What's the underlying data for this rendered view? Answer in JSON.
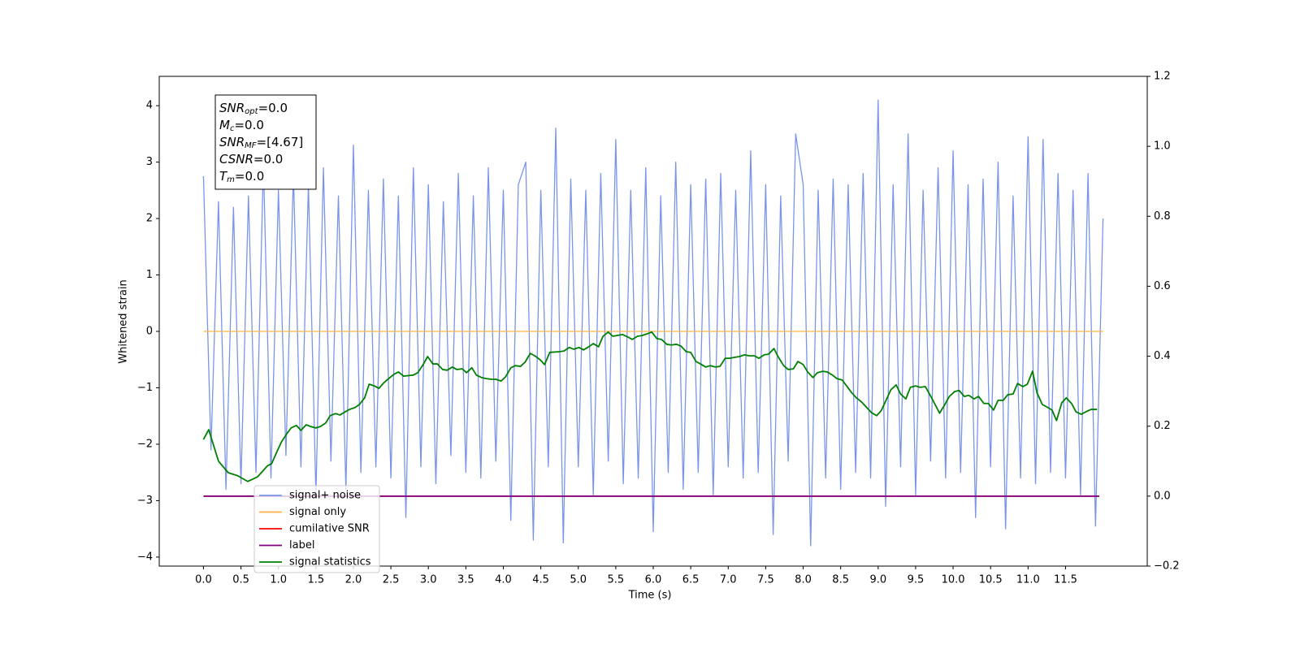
{
  "chart_data": {
    "type": "line",
    "xlabel": "Time (s)",
    "ylabel": "Whitened strain",
    "xlim": [
      -0.59,
      12.59
    ],
    "ylim": [
      -4.16,
      4.52
    ],
    "y2lim": [
      -0.2,
      1.2
    ],
    "xticks": [
      {
        "value": 0,
        "label": "0.0"
      },
      0.5,
      {
        "value": 1,
        "label": "1.0"
      },
      1.5,
      {
        "value": 2,
        "label": "2.0"
      },
      2.5,
      {
        "value": 3,
        "label": "3.0"
      },
      3.5,
      {
        "value": 4,
        "label": "4.0"
      },
      4.5,
      {
        "value": 5,
        "label": "5.0"
      },
      5.5,
      {
        "value": 6,
        "label": "6.0"
      },
      6.5,
      {
        "value": 7,
        "label": "7.0"
      },
      7.5,
      {
        "value": 8,
        "label": "8.0"
      },
      8.5,
      {
        "value": 9,
        "label": "9.0"
      },
      9.5,
      {
        "value": 10,
        "label": "10.0"
      },
      10.5,
      {
        "value": 11,
        "label": "11.0"
      },
      11.5
    ],
    "yticks": [
      {
        "value": -4,
        "label": "−4"
      },
      {
        "value": -3,
        "label": "−3"
      },
      {
        "value": -2,
        "label": "−2"
      },
      {
        "value": -1,
        "label": "−1"
      },
      0,
      1,
      2,
      3,
      4
    ],
    "y2ticks": [
      {
        "value": -0.2,
        "label": "−0.2"
      },
      {
        "value": 0,
        "label": "0.0"
      },
      0.2,
      0.4,
      0.6,
      0.8,
      {
        "value": 1,
        "label": "1.0"
      },
      1.2
    ],
    "legend_loc": "lower left",
    "annotation": [
      {
        "symbol": "SNR",
        "sub": "opt",
        "text": "=0.0"
      },
      {
        "symbol": "M",
        "sub": "c",
        "text": "=0.0"
      },
      {
        "symbol": "SNR",
        "sub": "MF",
        "text": "=[4.67]"
      },
      {
        "symbol": "CSNR",
        "sub": null,
        "text": "=0.0"
      },
      {
        "symbol": "T",
        "sub": "m",
        "text": "=0.0"
      }
    ],
    "series": [
      {
        "name": "signal+ noise",
        "color": "#7a95e8",
        "axis": "y",
        "x": [
          0,
          0.1,
          0.2,
          0.3,
          0.4,
          0.5,
          0.6,
          0.7,
          0.8,
          0.9,
          1,
          1.1,
          1.2,
          1.3,
          1.4,
          1.5,
          1.6,
          1.7,
          1.8,
          1.9,
          2,
          2.1,
          2.2,
          2.3,
          2.4,
          2.5,
          2.6,
          2.7,
          2.8,
          2.9,
          3,
          3.1,
          3.2,
          3.3,
          3.4,
          3.5,
          3.6,
          3.7,
          3.8,
          3.9,
          4,
          4.1,
          4.2,
          4.3,
          4.4,
          4.5,
          4.6,
          4.7,
          4.8,
          4.9,
          5,
          5.1,
          5.2,
          5.3,
          5.4,
          5.5,
          5.6,
          5.7,
          5.8,
          5.9,
          6,
          6.1,
          6.2,
          6.3,
          6.4,
          6.5,
          6.6,
          6.7,
          6.8,
          6.9,
          7,
          7.1,
          7.2,
          7.3,
          7.4,
          7.5,
          7.6,
          7.7,
          7.8,
          7.9,
          8,
          8.1,
          8.2,
          8.3,
          8.4,
          8.5,
          8.6,
          8.7,
          8.8,
          8.9,
          9,
          9.1,
          9.2,
          9.3,
          9.4,
          9.5,
          9.6,
          9.7,
          9.8,
          9.9,
          10,
          10.1,
          10.2,
          10.3,
          10.4,
          10.5,
          10.6,
          10.7,
          10.8,
          10.9,
          11,
          11.1,
          11.2,
          11.3,
          11.4,
          11.5,
          11.6,
          11.7,
          11.8,
          11.9,
          12
        ],
        "values": [
          2.75,
          -2.1,
          2.3,
          -2.8,
          2.2,
          -2.7,
          2.4,
          -2.5,
          3.0,
          -2.6,
          2.5,
          -2.2,
          2.8,
          -2.4,
          2.6,
          -2.9,
          2.9,
          -2.3,
          2.4,
          -2.8,
          3.3,
          -2.5,
          2.5,
          -2.4,
          2.7,
          -2.6,
          2.4,
          -3.3,
          2.9,
          -2.4,
          2.6,
          -2.7,
          2.3,
          -2.2,
          2.8,
          -2.5,
          2.4,
          -2.6,
          2.9,
          -2.3,
          2.5,
          -3.35,
          2.6,
          3.0,
          -3.7,
          2.5,
          -2.4,
          3.6,
          -3.75,
          2.7,
          -2.4,
          2.5,
          -2.9,
          2.8,
          -2.3,
          3.4,
          -2.7,
          2.5,
          -2.6,
          2.9,
          -3.55,
          2.4,
          -2.5,
          3.0,
          -2.8,
          2.6,
          -2.5,
          2.7,
          -2.9,
          2.8,
          -2.4,
          2.5,
          -2.6,
          3.2,
          -2.5,
          2.6,
          -3.6,
          2.4,
          -2.3,
          3.5,
          2.6,
          -3.8,
          2.5,
          -2.6,
          2.7,
          -2.8,
          2.6,
          -2.5,
          2.8,
          -2.6,
          4.1,
          -3.1,
          2.6,
          -2.4,
          3.5,
          -2.9,
          2.5,
          -2.3,
          2.9,
          -2.6,
          3.2,
          -2.5,
          2.6,
          -3.3,
          2.7,
          -2.4,
          3.0,
          -3.5,
          2.4,
          -2.6,
          3.45,
          -2.7,
          3.4,
          -2.5,
          2.8,
          -2.6,
          2.5,
          -2.9,
          2.8,
          -3.45,
          2.0
        ]
      },
      {
        "name": "signal only",
        "color": "#ffb347",
        "axis": "y",
        "x": [
          0,
          12
        ],
        "values": [
          0,
          0
        ]
      },
      {
        "name": "cumilative SNR",
        "color": "#ff0000",
        "axis": "y2",
        "x": [
          0,
          11.95
        ],
        "values": [
          0,
          0
        ]
      },
      {
        "name": "label",
        "color": "#800080",
        "axis": "y2",
        "x": [
          0,
          11.95
        ],
        "values": [
          0,
          0
        ]
      },
      {
        "name": "signal statistics",
        "color": "#008000",
        "axis": "y2",
        "x": [
          0,
          0.07,
          0.2,
          0.33,
          0.46,
          0.59,
          0.72,
          0.78,
          0.85,
          0.91,
          0.98,
          1.04,
          1.11,
          1.17,
          1.24,
          1.3,
          1.37,
          1.43,
          1.5,
          1.56,
          1.63,
          1.69,
          1.76,
          1.82,
          1.89,
          1.95,
          2.02,
          2.08,
          2.15,
          2.21,
          2.28,
          2.34,
          2.41,
          2.47,
          2.54,
          2.6,
          2.67,
          2.8,
          2.86,
          2.93,
          2.99,
          3.06,
          3.12,
          3.19,
          3.25,
          3.32,
          3.38,
          3.45,
          3.51,
          3.58,
          3.64,
          3.71,
          3.77,
          3.84,
          3.9,
          3.97,
          4.03,
          4.1,
          4.16,
          4.23,
          4.29,
          4.36,
          4.42,
          4.49,
          4.55,
          4.62,
          4.75,
          4.81,
          4.88,
          4.94,
          5.01,
          5.07,
          5.14,
          5.2,
          5.27,
          5.33,
          5.4,
          5.46,
          5.59,
          5.66,
          5.72,
          5.79,
          5.85,
          5.92,
          5.98,
          6.05,
          6.11,
          6.18,
          6.24,
          6.31,
          6.37,
          6.44,
          6.5,
          6.57,
          6.63,
          6.7,
          6.76,
          6.83,
          6.89,
          6.96,
          7.02,
          7.09,
          7.15,
          7.22,
          7.28,
          7.35,
          7.41,
          7.48,
          7.54,
          7.61,
          7.67,
          7.74,
          7.8,
          7.87,
          7.93,
          8,
          8.06,
          8.13,
          8.19,
          8.26,
          8.32,
          8.39,
          8.45,
          8.52,
          8.58,
          8.65,
          8.71,
          8.78,
          8.84,
          8.91,
          8.98,
          9.04,
          9.11,
          9.17,
          9.24,
          9.3,
          9.37,
          9.43,
          9.5,
          9.56,
          9.63,
          9.69,
          9.76,
          9.82,
          9.89,
          9.95,
          10.02,
          10.08,
          10.15,
          10.21,
          10.28,
          10.34,
          10.41,
          10.47,
          10.54,
          10.6,
          10.67,
          10.73,
          10.8,
          10.86,
          10.93,
          10.99,
          11.06,
          11.12,
          11.19,
          11.25,
          11.32,
          11.38,
          11.45,
          11.51,
          11.58,
          11.64,
          11.71,
          11.77,
          11.84,
          11.92
        ],
        "values": [
          0.162,
          0.19,
          0.1,
          0.067,
          0.058,
          0.042,
          0.055,
          0.069,
          0.086,
          0.093,
          0.127,
          0.155,
          0.178,
          0.195,
          0.202,
          0.188,
          0.204,
          0.199,
          0.195,
          0.199,
          0.209,
          0.23,
          0.236,
          0.232,
          0.241,
          0.248,
          0.253,
          0.262,
          0.281,
          0.32,
          0.315,
          0.308,
          0.325,
          0.336,
          0.348,
          0.355,
          0.343,
          0.346,
          0.353,
          0.376,
          0.399,
          0.378,
          0.378,
          0.362,
          0.36,
          0.369,
          0.362,
          0.364,
          0.353,
          0.367,
          0.346,
          0.339,
          0.336,
          0.334,
          0.334,
          0.329,
          0.341,
          0.367,
          0.373,
          0.371,
          0.383,
          0.408,
          0.401,
          0.39,
          0.376,
          0.411,
          0.413,
          0.415,
          0.425,
          0.42,
          0.425,
          0.418,
          0.427,
          0.436,
          0.427,
          0.457,
          0.469,
          0.457,
          0.462,
          0.455,
          0.448,
          0.457,
          0.459,
          0.464,
          0.469,
          0.45,
          0.448,
          0.434,
          0.432,
          0.434,
          0.429,
          0.413,
          0.411,
          0.385,
          0.378,
          0.369,
          0.373,
          0.369,
          0.371,
          0.394,
          0.394,
          0.397,
          0.399,
          0.404,
          0.401,
          0.401,
          0.394,
          0.404,
          0.406,
          0.422,
          0.397,
          0.373,
          0.362,
          0.364,
          0.385,
          0.376,
          0.355,
          0.339,
          0.353,
          0.357,
          0.355,
          0.346,
          0.336,
          0.332,
          0.315,
          0.295,
          0.281,
          0.269,
          0.255,
          0.239,
          0.23,
          0.244,
          0.276,
          0.304,
          0.318,
          0.292,
          0.278,
          0.311,
          0.315,
          0.311,
          0.313,
          0.29,
          0.262,
          0.237,
          0.262,
          0.285,
          0.299,
          0.302,
          0.285,
          0.288,
          0.278,
          0.285,
          0.265,
          0.265,
          0.246,
          0.274,
          0.274,
          0.29,
          0.292,
          0.322,
          0.313,
          0.32,
          0.357,
          0.295,
          0.262,
          0.255,
          0.246,
          0.216,
          0.267,
          0.281,
          0.265,
          0.241,
          0.234,
          0.241,
          0.248,
          0.248
        ]
      }
    ]
  }
}
